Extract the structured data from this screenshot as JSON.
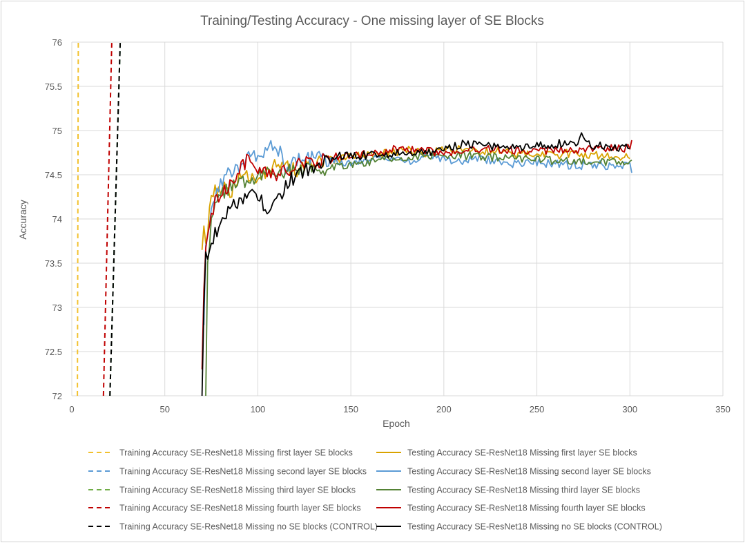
{
  "chart_data": {
    "type": "line",
    "title": "Training/Testing Accuracy - One missing layer of SE Blocks",
    "xlabel": "Epoch",
    "ylabel": "Accuracy",
    "xlim": [
      0,
      350
    ],
    "ylim": [
      72,
      76
    ],
    "xticks": [
      "0",
      "50",
      "100",
      "150",
      "200",
      "250",
      "300",
      "350"
    ],
    "yticks": [
      "72",
      "72.5",
      "73",
      "73.5",
      "74",
      "74.5",
      "75",
      "75.5",
      "76"
    ],
    "grid": true,
    "legend_position": "bottom",
    "series": [
      {
        "name": "Training Accuracy SE-ResNet18 Missing first layer SE blocks",
        "color": "#f2c12e",
        "style": "dashed",
        "x": [
          3.0,
          3.5
        ],
        "y": [
          72.0,
          76.0
        ]
      },
      {
        "name": "Testing Accuracy SE-ResNet18 Missing first layer SE blocks",
        "color": "#d9a300",
        "style": "solid",
        "x": [
          70,
          71,
          72,
          75,
          80,
          85,
          90,
          100,
          110,
          120,
          130,
          140,
          150,
          160,
          170,
          180,
          190,
          200,
          210,
          220,
          230,
          240,
          250,
          260,
          270,
          280,
          290,
          300
        ],
        "y": [
          73.65,
          73.92,
          73.7,
          74.3,
          74.35,
          74.3,
          74.45,
          74.5,
          74.6,
          74.55,
          74.62,
          74.65,
          74.7,
          74.72,
          74.75,
          74.78,
          74.75,
          74.78,
          74.8,
          74.75,
          74.78,
          74.72,
          74.75,
          74.72,
          74.75,
          74.72,
          74.7,
          74.72
        ]
      },
      {
        "name": "Training Accuracy SE-ResNet18 Missing second layer SE blocks",
        "color": "#5b9bd5",
        "style": "dashed",
        "x": [
          20.5,
          26.0
        ],
        "y": [
          72.0,
          76.0
        ]
      },
      {
        "name": "Testing Accuracy SE-ResNet18 Missing second layer SE blocks",
        "color": "#5b9bd5",
        "style": "solid",
        "x": [
          71,
          72,
          75,
          80,
          85,
          90,
          95,
          100,
          105,
          110,
          115,
          120,
          130,
          140,
          150,
          160,
          170,
          180,
          190,
          200,
          210,
          220,
          230,
          240,
          250,
          260,
          270,
          280,
          290,
          300,
          301
        ],
        "y": [
          72.8,
          73.7,
          74.1,
          74.4,
          74.55,
          74.6,
          74.75,
          74.65,
          74.8,
          74.85,
          74.6,
          74.65,
          74.7,
          74.65,
          74.65,
          74.68,
          74.7,
          74.65,
          74.7,
          74.68,
          74.65,
          74.68,
          74.65,
          74.62,
          74.65,
          74.62,
          74.6,
          74.62,
          74.6,
          74.6,
          74.55
        ]
      },
      {
        "name": "Training Accuracy SE-ResNet18 Missing third layer SE blocks",
        "color": "#70ad47",
        "style": "dashed",
        "x": [
          20.5,
          26.0
        ],
        "y": [
          72.0,
          76.0
        ]
      },
      {
        "name": "Testing Accuracy SE-ResNet18 Missing third layer SE blocks",
        "color": "#548235",
        "style": "solid",
        "x": [
          72,
          73,
          75,
          80,
          85,
          90,
          100,
          110,
          120,
          130,
          140,
          150,
          160,
          170,
          180,
          190,
          200,
          210,
          220,
          230,
          240,
          250,
          260,
          270,
          280,
          290,
          300,
          301
        ],
        "y": [
          72.0,
          73.5,
          74.0,
          74.25,
          74.35,
          74.4,
          74.5,
          74.55,
          74.55,
          74.55,
          74.6,
          74.62,
          74.65,
          74.68,
          74.7,
          74.7,
          74.7,
          74.72,
          74.7,
          74.7,
          74.68,
          74.68,
          74.65,
          74.65,
          74.65,
          74.65,
          74.62,
          74.68
        ]
      },
      {
        "name": "Training Accuracy SE-ResNet18 Missing fourth layer SE blocks",
        "color": "#c00000",
        "style": "dashed",
        "x": [
          17.0,
          21.5
        ],
        "y": [
          72.0,
          76.0
        ]
      },
      {
        "name": "Testing Accuracy SE-ResNet18 Missing fourth layer SE blocks",
        "color": "#c00000",
        "style": "solid",
        "x": [
          70,
          71,
          72,
          75,
          80,
          85,
          90,
          95,
          100,
          110,
          120,
          130,
          140,
          150,
          160,
          170,
          180,
          190,
          200,
          210,
          220,
          230,
          240,
          250,
          260,
          270,
          280,
          290,
          300,
          301
        ],
        "y": [
          72.3,
          73.2,
          73.6,
          74.1,
          74.3,
          74.4,
          74.55,
          74.7,
          74.5,
          74.5,
          74.6,
          74.65,
          74.7,
          74.72,
          74.75,
          74.78,
          74.78,
          74.78,
          74.75,
          74.75,
          74.78,
          74.78,
          74.78,
          74.78,
          74.78,
          74.78,
          74.78,
          74.8,
          74.8,
          74.85
        ]
      },
      {
        "name": "Training Accuracy SE-ResNet18 Missing no SE blocks (CONTROL)",
        "color": "#000000",
        "style": "dashed",
        "x": [
          20.5,
          26.0
        ],
        "y": [
          72.0,
          76.0
        ]
      },
      {
        "name": "Testing Accuracy SE-ResNet18 Missing no SE blocks (CONTROL)",
        "color": "#000000",
        "style": "solid",
        "x": [
          70,
          71,
          72,
          75,
          80,
          85,
          90,
          95,
          100,
          105,
          110,
          115,
          120,
          125,
          130,
          140,
          150,
          160,
          170,
          180,
          190,
          200,
          210,
          220,
          230,
          240,
          250,
          260,
          270,
          275,
          280,
          290,
          300
        ],
        "y": [
          72.0,
          73.0,
          73.6,
          73.7,
          74.0,
          74.1,
          74.2,
          74.25,
          74.3,
          74.1,
          74.2,
          74.35,
          74.5,
          74.55,
          74.55,
          74.7,
          74.72,
          74.72,
          74.72,
          74.75,
          74.75,
          74.8,
          74.85,
          74.82,
          74.82,
          74.82,
          74.82,
          74.85,
          74.85,
          74.95,
          74.82,
          74.82,
          74.8
        ]
      }
    ]
  }
}
